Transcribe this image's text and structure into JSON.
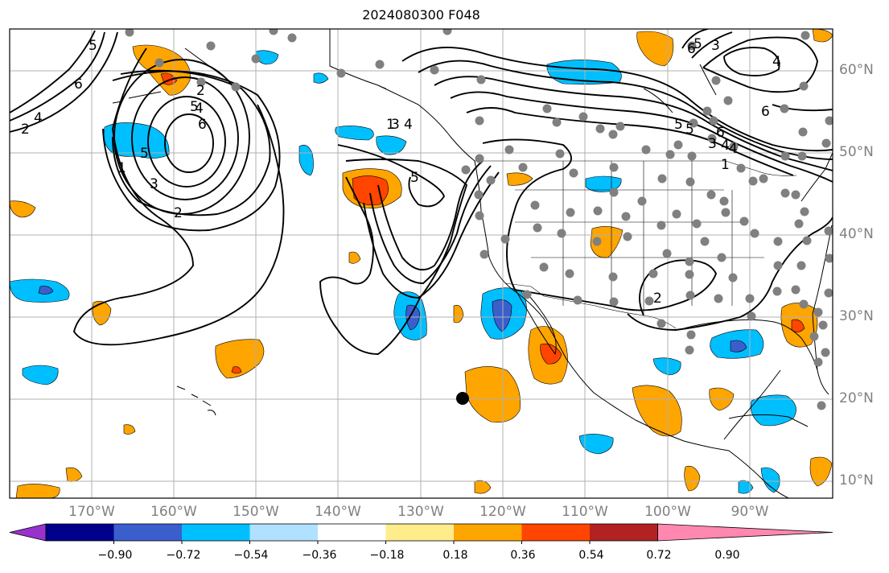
{
  "title": "2024080300 F048",
  "map": {
    "lon_labels": [
      "170°W",
      "160°W",
      "150°W",
      "140°W",
      "130°W",
      "120°W",
      "110°W",
      "100°W",
      "90°W"
    ],
    "lat_labels": [
      "60°N",
      "50°N",
      "40°N",
      "30°N",
      "20°N",
      "10°N"
    ],
    "contour_labels": [
      "6",
      "4",
      "2",
      "5",
      "4",
      "6",
      "3",
      "1",
      "5",
      "2",
      "3",
      "4",
      "5",
      "6",
      "5",
      "3",
      "4",
      "5",
      "6",
      "3",
      "4",
      "6",
      "5",
      "5",
      "4",
      "1",
      "2",
      "1",
      "2"
    ],
    "colors": {
      "grid": "#b0b0b0",
      "contour": "#000000",
      "station_dot": "#808080",
      "neg_036": "#00bfff",
      "neg_054": "#3a5fcd",
      "pos_036": "#ffa500",
      "pos_054": "#ff4500"
    }
  },
  "colorbar": {
    "tick_labels": [
      "−0.90",
      "−0.72",
      "−0.54",
      "−0.36",
      "−0.18",
      "0.18",
      "0.36",
      "0.54",
      "0.72",
      "0.90"
    ],
    "colors": [
      "#9932cc",
      "#00008b",
      "#3a5fcd",
      "#00bfff",
      "#b0e2ff",
      "#ffffff",
      "#ffec8b",
      "#ffa500",
      "#ff4500",
      "#b22222",
      "#ff88b0"
    ]
  }
}
